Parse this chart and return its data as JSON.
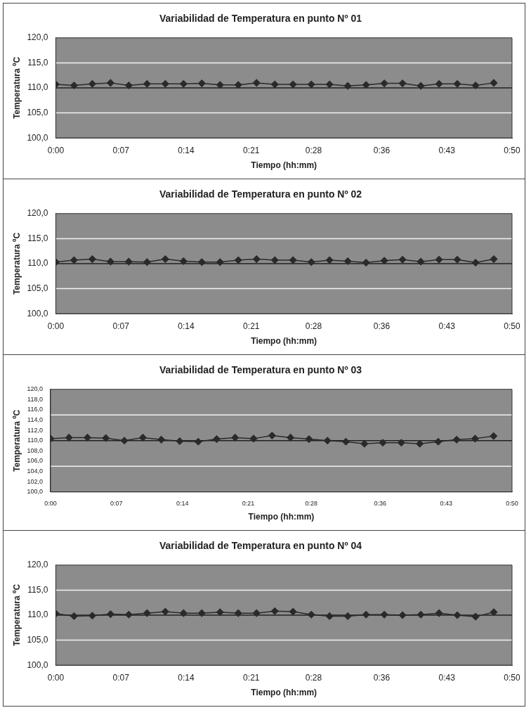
{
  "chart_data": [
    {
      "type": "line",
      "title": "Variabilidad de Temperatura en punto Nº 01",
      "xlabel": "Tiempo (hh:mm)",
      "ylabel": "Temperatura ºC",
      "marker": "diamond",
      "legend": false,
      "grid": false,
      "x": [
        0,
        0.0333,
        0.0667,
        0.1,
        0.1333,
        0.1667,
        0.2,
        0.2333,
        0.2667,
        0.3,
        0.3333,
        0.3667,
        0.4,
        0.4333,
        0.4667,
        0.5,
        0.5333,
        0.5667,
        0.6,
        0.6333,
        0.6667,
        0.7,
        0.7333,
        0.7667,
        0.8
      ],
      "series": [
        {
          "color": "#2a2a2a",
          "values": [
            110.7,
            110.5,
            110.8,
            111.0,
            110.5,
            110.8,
            110.8,
            110.8,
            110.9,
            110.6,
            110.6,
            111.0,
            110.7,
            110.7,
            110.7,
            110.7,
            110.4,
            110.6,
            110.9,
            110.9,
            110.4,
            110.8,
            110.8,
            110.5,
            111.0
          ]
        }
      ],
      "ylim": [
        100,
        120
      ],
      "yticks": [
        {
          "value": 100,
          "label": "100,0"
        },
        {
          "value": 105,
          "label": "105,0"
        },
        {
          "value": 110,
          "label": "110,0"
        },
        {
          "value": 115,
          "label": "115,0"
        },
        {
          "value": 120,
          "label": "120,0"
        }
      ],
      "xlim": [
        0,
        0.8333
      ],
      "xticks": [
        {
          "value": 0,
          "label": "0:00"
        },
        {
          "value": 0.119,
          "label": "0:07"
        },
        {
          "value": 0.2381,
          "label": "0:14"
        },
        {
          "value": 0.3571,
          "label": "0:21"
        },
        {
          "value": 0.4708,
          "label": "0:28"
        },
        {
          "value": 0.5952,
          "label": "0:36"
        },
        {
          "value": 0.7143,
          "label": "0:43"
        },
        {
          "value": 0.8333,
          "label": "0:50"
        }
      ],
      "ref_lines": [
        {
          "axis": "y",
          "value": 105,
          "color": "#f2f2f2"
        },
        {
          "axis": "y",
          "value": 110,
          "color": "#222222"
        },
        {
          "axis": "y",
          "value": 115,
          "color": "#f2f2f2"
        }
      ]
    },
    {
      "type": "line",
      "title": "Variabilidad de Temperatura en punto Nº 02",
      "xlabel": "Tiempo (hh:mm)",
      "ylabel": "Temperatura ºC",
      "marker": "diamond",
      "legend": false,
      "grid": false,
      "x": [
        0,
        0.0333,
        0.0667,
        0.1,
        0.1333,
        0.1667,
        0.2,
        0.2333,
        0.2667,
        0.3,
        0.3333,
        0.3667,
        0.4,
        0.4333,
        0.4667,
        0.5,
        0.5333,
        0.5667,
        0.6,
        0.6333,
        0.6667,
        0.7,
        0.7333,
        0.7667,
        0.8
      ],
      "series": [
        {
          "color": "#2a2a2a",
          "values": [
            110.3,
            110.7,
            110.9,
            110.4,
            110.4,
            110.3,
            110.9,
            110.5,
            110.3,
            110.3,
            110.7,
            110.9,
            110.7,
            110.7,
            110.3,
            110.7,
            110.5,
            110.2,
            110.6,
            110.8,
            110.4,
            110.8,
            110.8,
            110.2,
            110.9
          ]
        }
      ],
      "ylim": [
        100,
        120
      ],
      "yticks": [
        {
          "value": 100,
          "label": "100,0"
        },
        {
          "value": 105,
          "label": "105,0"
        },
        {
          "value": 110,
          "label": "110,0"
        },
        {
          "value": 115,
          "label": "115,0"
        },
        {
          "value": 120,
          "label": "120,0"
        }
      ],
      "xlim": [
        0,
        0.8333
      ],
      "xticks": [
        {
          "value": 0,
          "label": "0:00"
        },
        {
          "value": 0.119,
          "label": "0:07"
        },
        {
          "value": 0.2381,
          "label": "0:14"
        },
        {
          "value": 0.3571,
          "label": "0:21"
        },
        {
          "value": 0.4708,
          "label": "0:28"
        },
        {
          "value": 0.5952,
          "label": "0:36"
        },
        {
          "value": 0.7143,
          "label": "0:43"
        },
        {
          "value": 0.8333,
          "label": "0:50"
        }
      ],
      "ref_lines": [
        {
          "axis": "y",
          "value": 105,
          "color": "#f2f2f2"
        },
        {
          "axis": "y",
          "value": 110,
          "color": "#222222"
        },
        {
          "axis": "y",
          "value": 115,
          "color": "#f2f2f2"
        }
      ]
    },
    {
      "type": "line",
      "title": "Variabilidad de Temperatura en punto Nº 03",
      "xlabel": "Tiempo (hh:mm)",
      "ylabel": "Temperatura ºC",
      "marker": "diamond",
      "legend": false,
      "grid": false,
      "x": [
        0,
        0.0333,
        0.0667,
        0.1,
        0.1333,
        0.1667,
        0.2,
        0.2333,
        0.2667,
        0.3,
        0.3333,
        0.3667,
        0.4,
        0.4333,
        0.4667,
        0.5,
        0.5333,
        0.5667,
        0.6,
        0.6333,
        0.6667,
        0.7,
        0.7333,
        0.7667,
        0.8
      ],
      "series": [
        {
          "color": "#2a2a2a",
          "values": [
            110.4,
            110.6,
            110.6,
            110.5,
            110.0,
            110.6,
            110.2,
            109.9,
            109.8,
            110.3,
            110.6,
            110.4,
            111.0,
            110.6,
            110.3,
            110.0,
            109.8,
            109.4,
            109.6,
            109.6,
            109.4,
            109.8,
            110.2,
            110.4,
            110.9
          ]
        }
      ],
      "ylim": [
        100,
        120
      ],
      "yticks": [
        {
          "value": 100,
          "label": "100,0"
        },
        {
          "value": 102,
          "label": "102,0"
        },
        {
          "value": 104,
          "label": "104,0"
        },
        {
          "value": 106,
          "label": "106,0"
        },
        {
          "value": 108,
          "label": "108,0"
        },
        {
          "value": 110,
          "label": "110,0"
        },
        {
          "value": 112,
          "label": "112,0"
        },
        {
          "value": 114,
          "label": "114,0"
        },
        {
          "value": 116,
          "label": "116,0"
        },
        {
          "value": 118,
          "label": "118,0"
        },
        {
          "value": 120,
          "label": "120,0"
        }
      ],
      "xlim": [
        0,
        0.8333
      ],
      "xticks": [
        {
          "value": 0,
          "label": "0:00"
        },
        {
          "value": 0.119,
          "label": "0:07"
        },
        {
          "value": 0.2381,
          "label": "0:14"
        },
        {
          "value": 0.3571,
          "label": "0:21"
        },
        {
          "value": 0.4708,
          "label": "0:28"
        },
        {
          "value": 0.5952,
          "label": "0:36"
        },
        {
          "value": 0.7143,
          "label": "0:43"
        },
        {
          "value": 0.8333,
          "label": "0:50"
        }
      ],
      "ref_lines": [
        {
          "axis": "y",
          "value": 105,
          "color": "#f2f2f2"
        },
        {
          "axis": "y",
          "value": 110,
          "color": "#222222"
        },
        {
          "axis": "y",
          "value": 115,
          "color": "#f2f2f2"
        }
      ]
    },
    {
      "type": "line",
      "title": "Variabilidad de Temperatura en punto Nº 04",
      "xlabel": "Tiempo (hh:mm)",
      "ylabel": "Temperatura ºC",
      "marker": "diamond",
      "legend": false,
      "grid": false,
      "x": [
        0,
        0.0333,
        0.0667,
        0.1,
        0.1333,
        0.1667,
        0.2,
        0.2333,
        0.2667,
        0.3,
        0.3333,
        0.3667,
        0.4,
        0.4333,
        0.4667,
        0.5,
        0.5333,
        0.5667,
        0.6,
        0.6333,
        0.6667,
        0.7,
        0.7333,
        0.7667,
        0.8
      ],
      "series": [
        {
          "color": "#2a2a2a",
          "values": [
            110.3,
            109.8,
            109.9,
            110.2,
            110.1,
            110.4,
            110.7,
            110.4,
            110.4,
            110.6,
            110.4,
            110.4,
            110.8,
            110.7,
            110.1,
            109.8,
            109.8,
            110.1,
            110.1,
            110.0,
            110.1,
            110.4,
            110.0,
            109.7,
            110.6
          ]
        }
      ],
      "ylim": [
        100,
        120
      ],
      "yticks": [
        {
          "value": 100,
          "label": "100,0"
        },
        {
          "value": 105,
          "label": "105,0"
        },
        {
          "value": 110,
          "label": "110,0"
        },
        {
          "value": 115,
          "label": "115,0"
        },
        {
          "value": 120,
          "label": "120,0"
        }
      ],
      "xlim": [
        0,
        0.8333
      ],
      "xticks": [
        {
          "value": 0,
          "label": "0:00"
        },
        {
          "value": 0.119,
          "label": "0:07"
        },
        {
          "value": 0.2381,
          "label": "0:14"
        },
        {
          "value": 0.3571,
          "label": "0:21"
        },
        {
          "value": 0.4708,
          "label": "0:28"
        },
        {
          "value": 0.5952,
          "label": "0:36"
        },
        {
          "value": 0.7143,
          "label": "0:43"
        },
        {
          "value": 0.8333,
          "label": "0:50"
        }
      ],
      "ref_lines": [
        {
          "axis": "y",
          "value": 105,
          "color": "#f2f2f2"
        },
        {
          "axis": "y",
          "value": 110,
          "color": "#222222"
        },
        {
          "axis": "y",
          "value": 115,
          "color": "#f2f2f2"
        }
      ]
    }
  ]
}
